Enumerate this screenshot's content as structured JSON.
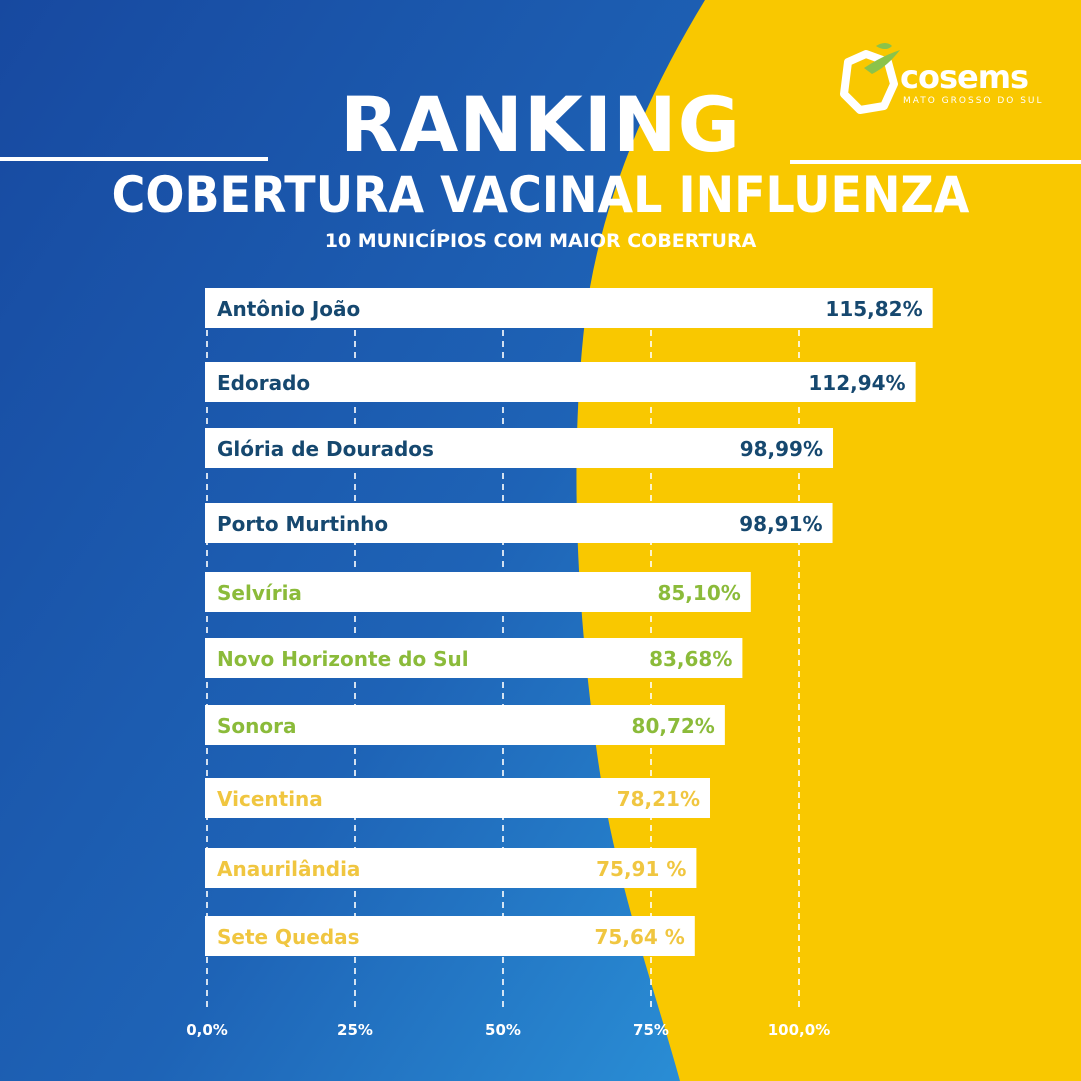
{
  "header": {
    "title": "RANKING",
    "subtitle": "COBERTURA VACINAL INFLUENZA",
    "caption": "10 MUNICÍPIOS COM MAIOR COBERTURA"
  },
  "logo": {
    "name": "cosems",
    "region": "MATO GROSSO DO SUL",
    "icon": "bird-map-icon"
  },
  "colors": {
    "blue": "#1b5fae",
    "yellow": "#f9c800",
    "navy": "#16486f",
    "green": "#8bbb3a",
    "gold": "#f0c640"
  },
  "chart_data": {
    "type": "bar",
    "orientation": "horizontal",
    "categories": [
      "Antônio João",
      "Edorado",
      "Glória de Dourados",
      "Porto Murtinho",
      "Selvíria",
      "Novo Horizonte do Sul",
      "Sonora",
      "Vicentina",
      "Anaurilândia",
      "Sete Quedas"
    ],
    "values": [
      115.82,
      112.94,
      98.99,
      98.91,
      85.1,
      83.68,
      80.72,
      78.21,
      75.91,
      75.64
    ],
    "value_labels": [
      "115,82%",
      "112,94%",
      "98,99%",
      "98,91%",
      "85,10%",
      "83,68%",
      "80,72%",
      "78,21%",
      "75,91 %",
      "75,64 %"
    ],
    "label_colors": [
      "#16486f",
      "#16486f",
      "#16486f",
      "#16486f",
      "#8bbb3a",
      "#8bbb3a",
      "#8bbb3a",
      "#f0c640",
      "#f0c640",
      "#f0c640"
    ],
    "x_ticks": [
      0,
      25,
      50,
      75,
      100
    ],
    "x_tick_labels": [
      "0,0%",
      "25%",
      "50%",
      "75%",
      "100,0%"
    ],
    "xlim": [
      0,
      100
    ],
    "grid": "dashed vertical"
  }
}
